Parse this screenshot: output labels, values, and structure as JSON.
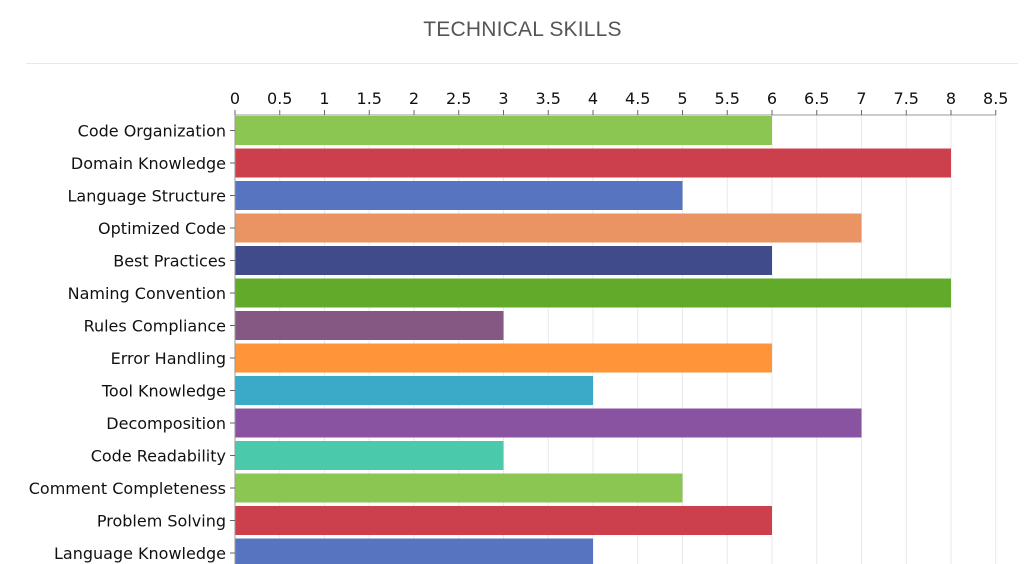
{
  "chart_data": {
    "type": "bar",
    "orientation": "horizontal",
    "title": "TECHNICAL SKILLS",
    "xlim": [
      0,
      8.5
    ],
    "ticks": [
      "0",
      "0.5",
      "1",
      "1.5",
      "2",
      "2.5",
      "3",
      "3.5",
      "4",
      "4.5",
      "5",
      "5.5",
      "6",
      "6.5",
      "7",
      "7.5",
      "8",
      "8.5"
    ],
    "tick_values": [
      0,
      0.5,
      1,
      1.5,
      2,
      2.5,
      3,
      3.5,
      4,
      4.5,
      5,
      5.5,
      6,
      6.5,
      7,
      7.5,
      8,
      8.5
    ],
    "axis_position": "top",
    "grid": true,
    "categories": [
      "Code Organization",
      "Domain Knowledge",
      "Language Structure",
      "Optimized Code",
      "Best Practices",
      "Naming Convention",
      "Rules Compliance",
      "Error Handling",
      "Tool Knowledge",
      "Decomposition",
      "Code Readability",
      "Comment Completeness",
      "Problem Solving",
      "Language Knowledge"
    ],
    "values": [
      6,
      8,
      5,
      7,
      6,
      8,
      3,
      6,
      4,
      7,
      3,
      5,
      6,
      4
    ],
    "colors": [
      "#8bc652",
      "#cc404d",
      "#5674bf",
      "#ea9363",
      "#3f4b8b",
      "#62aa2a",
      "#855883",
      "#ff9438",
      "#3ba9c8",
      "#8953a2",
      "#4bcaab",
      "#8bc652",
      "#cc404d",
      "#5674bf"
    ]
  }
}
